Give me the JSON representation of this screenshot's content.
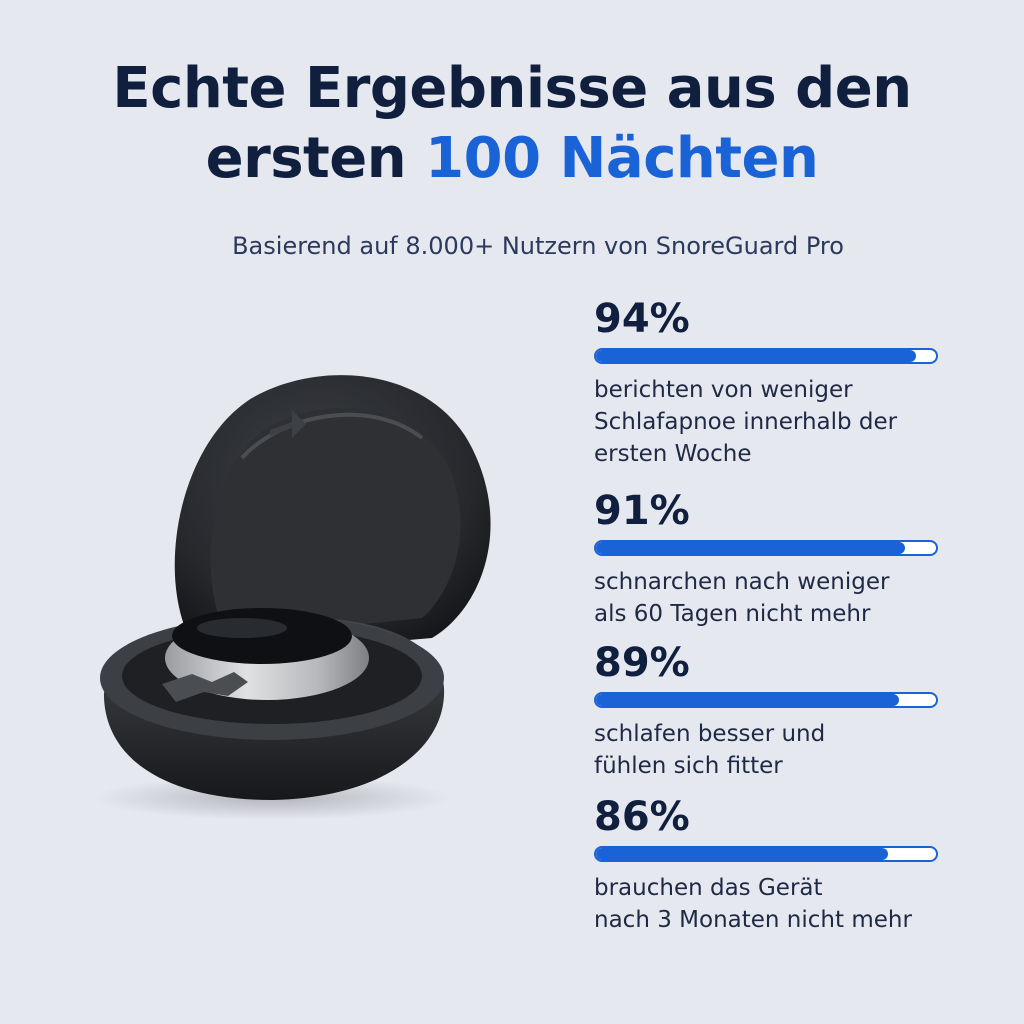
{
  "headline": {
    "line1": "Echte Ergebnisse aus den",
    "line2_prefix": "ersten ",
    "line2_accent": "100 Nächten"
  },
  "subtitle": "Basierend auf 8.000+ Nutzern von SnoreGuard Pro",
  "colors": {
    "background": "#e6e8f0",
    "heading": "#0f1f3d",
    "accent": "#1a63d6"
  },
  "stats": [
    {
      "value": "94%",
      "fraction": 0.94,
      "description_lines": [
        "berichten von weniger",
        "Schlafapnoe innerhalb der",
        "ersten Woche"
      ]
    },
    {
      "value": "91%",
      "fraction": 0.91,
      "description_lines": [
        "schnarchen nach weniger",
        "als 60 Tagen nicht mehr"
      ]
    },
    {
      "value": "89%",
      "fraction": 0.89,
      "description_lines": [
        "schlafen besser und",
        "fühlen sich fitter"
      ]
    },
    {
      "value": "86%",
      "fraction": 0.86,
      "description_lines": [
        "brauchen das Gerät",
        "nach 3 Monaten nicht mehr"
      ]
    }
  ],
  "product_image": {
    "icon": "snore-device-case-icon"
  }
}
